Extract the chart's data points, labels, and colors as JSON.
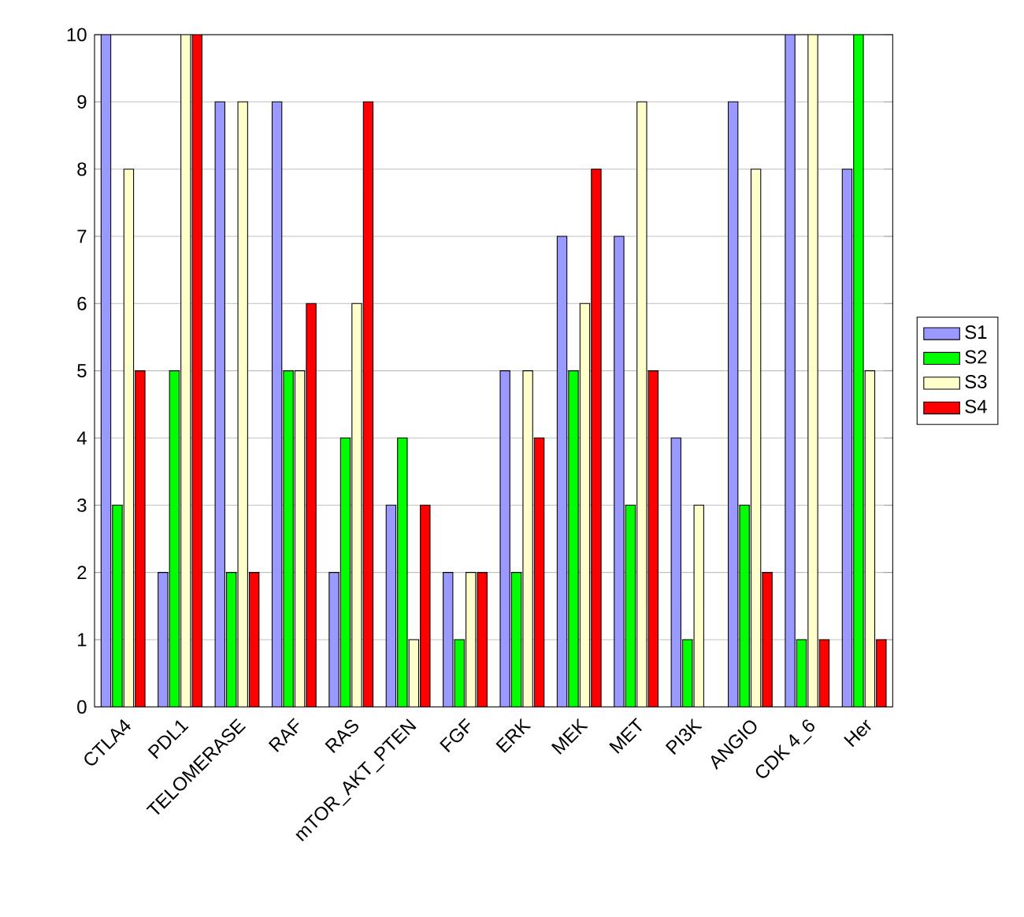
{
  "chart_data": {
    "type": "bar",
    "categories": [
      "CTLA4",
      "PDL1",
      "TELOMERASE",
      "RAF",
      "RAS",
      "mTOR_AKT_PTEN",
      "FGF",
      "ERK",
      "MEK",
      "MET",
      "PI3K",
      "ANGIO",
      "CDK  4_6",
      "Her"
    ],
    "series": [
      {
        "name": "S1",
        "color": "#9999ff",
        "values": [
          10,
          2,
          9,
          9,
          2,
          3,
          2,
          5,
          7,
          7,
          4,
          9,
          10,
          8
        ]
      },
      {
        "name": "S2",
        "color": "#00ff00",
        "values": [
          3,
          5,
          2,
          5,
          4,
          4,
          1,
          2,
          5,
          3,
          1,
          3,
          1,
          10
        ]
      },
      {
        "name": "S3",
        "color": "#ffffcc",
        "values": [
          8,
          10,
          9,
          5,
          6,
          1,
          2,
          5,
          6,
          9,
          3,
          8,
          10,
          5
        ]
      },
      {
        "name": "S4",
        "color": "#ff0000",
        "values": [
          5,
          10,
          2,
          6,
          9,
          3,
          2,
          4,
          8,
          5,
          null,
          2,
          1,
          1
        ]
      }
    ],
    "ylim": [
      0,
      10
    ],
    "yticks": [
      0,
      1,
      2,
      3,
      4,
      5,
      6,
      7,
      8,
      9,
      10
    ],
    "grid": "y",
    "legend": "right"
  }
}
